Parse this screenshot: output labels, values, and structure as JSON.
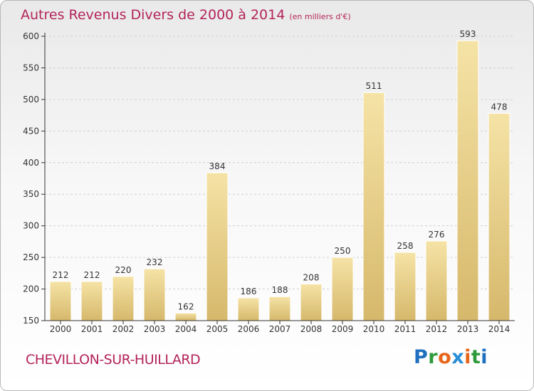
{
  "header": {
    "title": "Autres Revenus Divers de 2000 à 2014",
    "subtitle": "(en milliers d'€)"
  },
  "footer": {
    "town": "CHEVILLON-SUR-HUILLARD",
    "logo": "Proxiti"
  },
  "colors": {
    "title": "#b3245a",
    "bar_light": "#f5e3a6",
    "bar_dark": "#d9bd72",
    "axis": "#333333"
  },
  "chart_data": {
    "type": "bar",
    "title": "Autres Revenus Divers de 2000 à 2014",
    "subtitle": "(en milliers d'€)",
    "categories": [
      "2000",
      "2001",
      "2002",
      "2003",
      "2004",
      "2005",
      "2006",
      "2007",
      "2008",
      "2009",
      "2010",
      "2011",
      "2012",
      "2013",
      "2014"
    ],
    "values": [
      212,
      212,
      220,
      232,
      162,
      384,
      186,
      188,
      208,
      250,
      511,
      258,
      276,
      593,
      478
    ],
    "ylim": [
      150,
      600
    ],
    "yticks": [
      150,
      200,
      250,
      300,
      350,
      400,
      450,
      500,
      550,
      600
    ],
    "grid": true
  }
}
